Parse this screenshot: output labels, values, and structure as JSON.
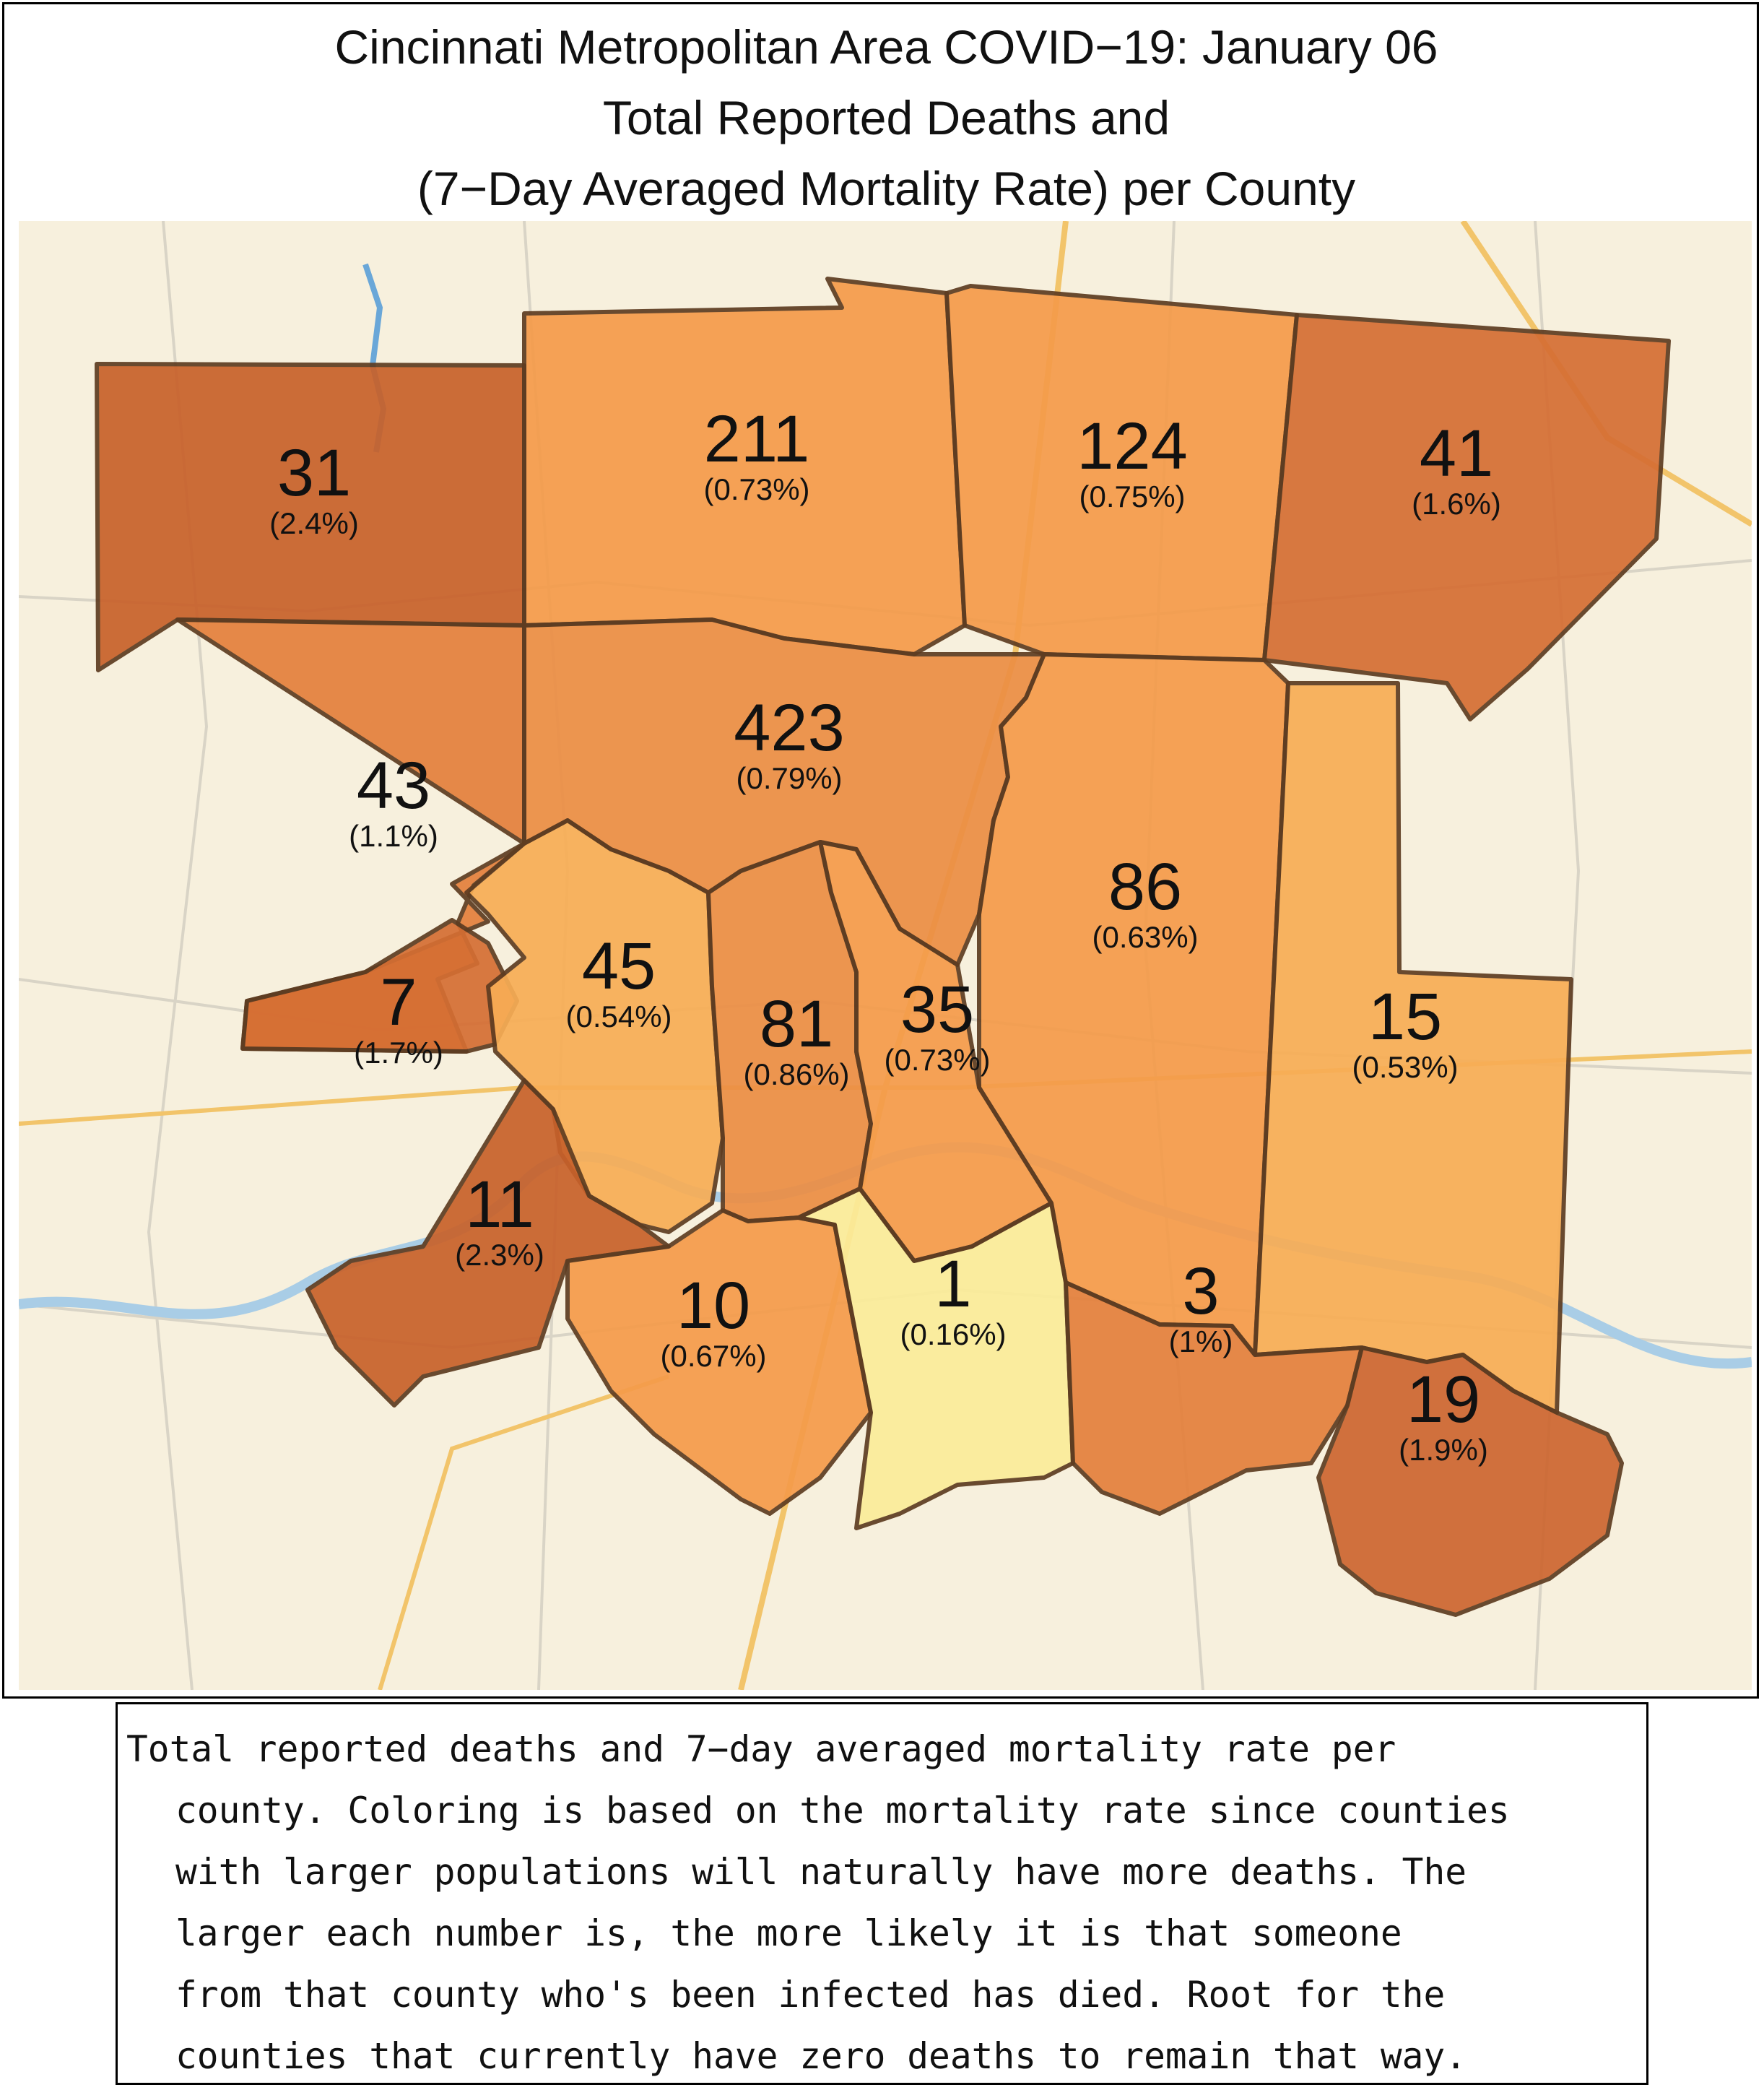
{
  "title": {
    "line1": "Cincinnati Metropolitan Area COVID−19: January 06",
    "line2": "Total Reported Deaths and",
    "line3": "(7−Day Averaged Mortality Rate) per County"
  },
  "counties": [
    {
      "deaths": "31",
      "rate": "(2.4%)",
      "color": "#c8612a"
    },
    {
      "deaths": "211",
      "rate": "(0.73%)",
      "color": "#f59b4a"
    },
    {
      "deaths": "124",
      "rate": "(0.75%)",
      "color": "#f59b4a"
    },
    {
      "deaths": "41",
      "rate": "(1.6%)",
      "color": "#d56e33"
    },
    {
      "deaths": "43",
      "rate": "(1.1%)",
      "color": "#e4803c"
    },
    {
      "deaths": "423",
      "rate": "(0.79%)",
      "color": "#ec8e44"
    },
    {
      "deaths": "86",
      "rate": "(0.63%)",
      "color": "#f59b4a"
    },
    {
      "deaths": "15",
      "rate": "(0.53%)",
      "color": "#f8ad55"
    },
    {
      "deaths": "7",
      "rate": "(1.7%)",
      "color": "#d56e33"
    },
    {
      "deaths": "45",
      "rate": "(0.54%)",
      "color": "#f8ad55"
    },
    {
      "deaths": "81",
      "rate": "(0.86%)",
      "color": "#ec8e44"
    },
    {
      "deaths": "35",
      "rate": "(0.73%)",
      "color": "#f59b4a"
    },
    {
      "deaths": "11",
      "rate": "(2.3%)",
      "color": "#c8612a"
    },
    {
      "deaths": "10",
      "rate": "(0.67%)",
      "color": "#f59b4a"
    },
    {
      "deaths": "1",
      "rate": "(0.16%)",
      "color": "#fbec99"
    },
    {
      "deaths": "3",
      "rate": "(1%)",
      "color": "#e4803c"
    },
    {
      "deaths": "19",
      "rate": "(1.9%)",
      "color": "#cd6630"
    }
  ],
  "caption": {
    "line1": "Total reported deaths and 7−day averaged mortality rate per",
    "line2": "county. Coloring is based on the mortality rate since counties",
    "line3": "with larger populations will naturally have more deaths. The",
    "line4": "larger each number is, the more likely it is that someone",
    "line5": "from that county who's been infected has died. Root for the",
    "line6": "counties that currently have zero deaths to remain that way."
  },
  "colors": {
    "basemap": "#f7f0dd",
    "road_major": "#f2c46a",
    "road_minor": "#d9d4c6",
    "river": "#a9cde6",
    "county_border": "#5e3c21"
  }
}
